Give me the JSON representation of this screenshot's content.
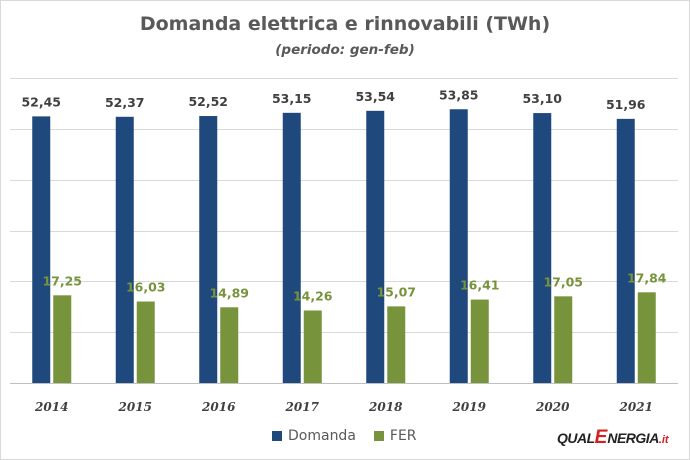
{
  "chart_data": {
    "type": "bar",
    "title": "Domanda elettrica e rinnovabili (TWh)",
    "subtitle": "(periodo: gen-feb)",
    "categories": [
      "2014",
      "2015",
      "2016",
      "2017",
      "2018",
      "2019",
      "2020",
      "2021"
    ],
    "series": [
      {
        "name": "Domanda",
        "color": "#1f497d",
        "values": [
          52.45,
          52.37,
          52.52,
          53.15,
          53.54,
          53.85,
          53.1,
          51.96
        ],
        "labels": [
          "52,45",
          "52,37",
          "52,52",
          "53,15",
          "53,54",
          "53,85",
          "53,10",
          "51,96"
        ],
        "label_color": "#404040"
      },
      {
        "name": "FER",
        "color": "#77933c",
        "values": [
          17.25,
          16.03,
          14.89,
          14.26,
          15.07,
          16.41,
          17.05,
          17.84
        ],
        "labels": [
          "17,25",
          "16,03",
          "14,89",
          "14,26",
          "15,07",
          "16,41",
          "17,05",
          "17,84"
        ],
        "label_color": "#77933c"
      }
    ],
    "ylim": [
      0,
      60
    ],
    "ytick_step": 10,
    "y_tick_labels_shown": false,
    "grid": true,
    "legend_position": "bottom"
  },
  "logo": {
    "part1": "QUAL",
    "part2": "E",
    "part3": "NERGIA",
    "part4": ".it"
  }
}
